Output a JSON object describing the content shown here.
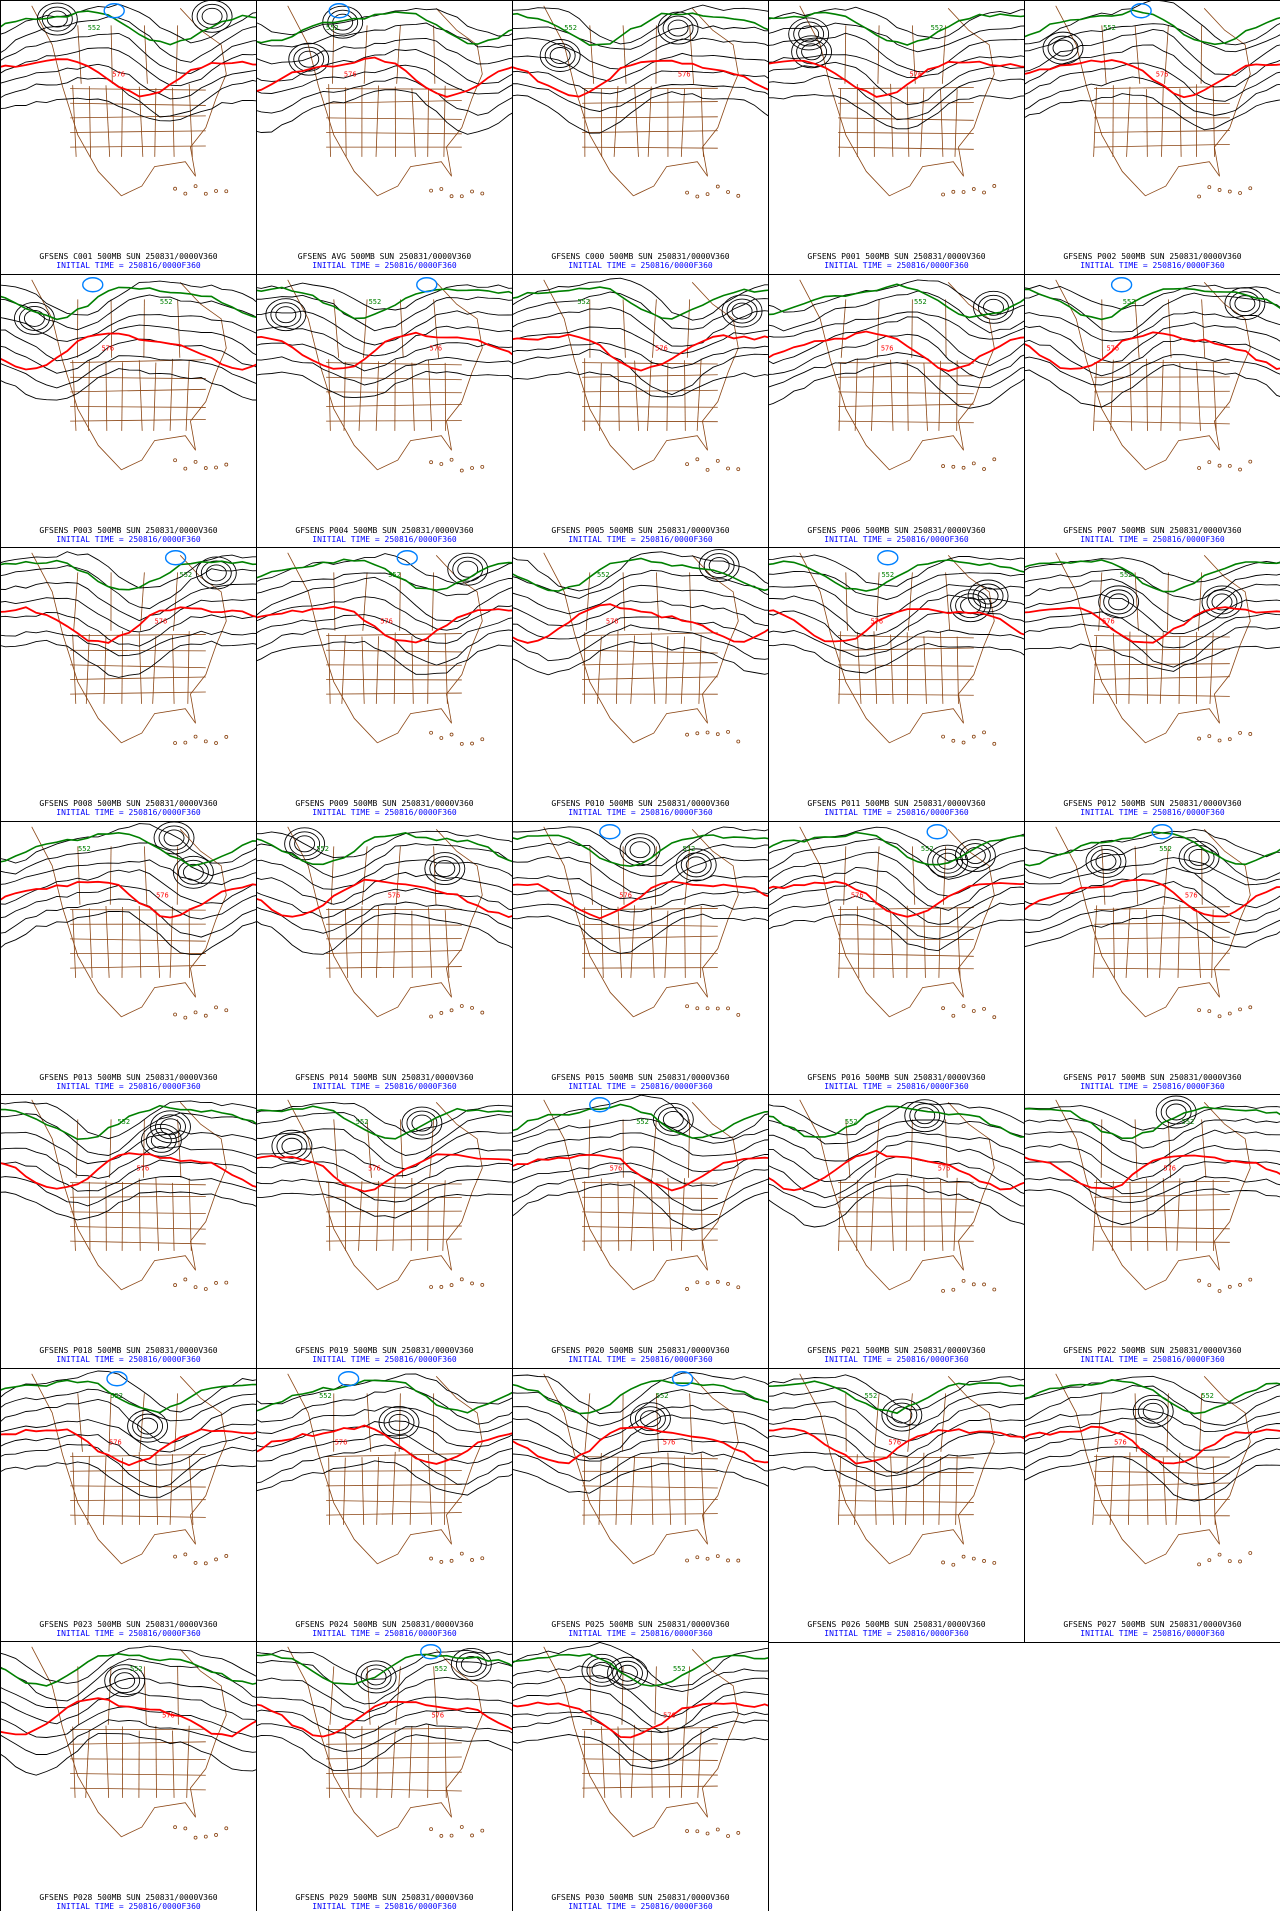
{
  "initial_time_label": "INITIAL TIME = 250816/0000F360",
  "colors": {
    "border": "#000000",
    "contour": "#000000",
    "contour_576": "#ff0000",
    "contour_552": "#008000",
    "contour_low": "#0080ff",
    "map_lines": "#8b4513",
    "caption_blue": "#0000ff"
  },
  "contour_labels": {
    "line_576": "576",
    "line_552": "552"
  },
  "panels": [
    {
      "title": "GFSENS C001 500MB SUN 250831/0000V360"
    },
    {
      "title": "GFSENS AVG 500MB SUN 250831/0000V360"
    },
    {
      "title": "GFSENS C000 500MB SUN 250831/0000V360"
    },
    {
      "title": "GFSENS P001 500MB SUN 250831/0000V360"
    },
    {
      "title": "GFSENS P002 500MB SUN 250831/0000V360"
    },
    {
      "title": "GFSENS P003 500MB SUN 250831/0000V360"
    },
    {
      "title": "GFSENS P004 500MB SUN 250831/0000V360"
    },
    {
      "title": "GFSENS P005 500MB SUN 250831/0000V360"
    },
    {
      "title": "GFSENS P006 500MB SUN 250831/0000V360"
    },
    {
      "title": "GFSENS P007 500MB SUN 250831/0000V360"
    },
    {
      "title": "GFSENS P008 500MB SUN 250831/0000V360"
    },
    {
      "title": "GFSENS P009 500MB SUN 250831/0000V360"
    },
    {
      "title": "GFSENS P010 500MB SUN 250831/0000V360"
    },
    {
      "title": "GFSENS P011 500MB SUN 250831/0000V360"
    },
    {
      "title": "GFSENS P012 500MB SUN 250831/0000V360"
    },
    {
      "title": "GFSENS P013 500MB SUN 250831/0000V360"
    },
    {
      "title": "GFSENS P014 500MB SUN 250831/0000V360"
    },
    {
      "title": "GFSENS P015 500MB SUN 250831/0000V360"
    },
    {
      "title": "GFSENS P016 500MB SUN 250831/0000V360"
    },
    {
      "title": "GFSENS P017 500MB SUN 250831/0000V360"
    },
    {
      "title": "GFSENS P018 500MB SUN 250831/0000V360"
    },
    {
      "title": "GFSENS P019 500MB SUN 250831/0000V360"
    },
    {
      "title": "GFSENS P020 500MB SUN 250831/0000V360"
    },
    {
      "title": "GFSENS P021 500MB SUN 250831/0000V360"
    },
    {
      "title": "GFSENS P022 500MB SUN 250831/0000V360"
    },
    {
      "title": "GFSENS P023 500MB SUN 250831/0000V360"
    },
    {
      "title": "GFSENS P024 500MB SUN 250831/0000V360"
    },
    {
      "title": "GFSENS P025 500MB SUN 250831/0000V360"
    },
    {
      "title": "GFSENS P026 500MB SUN 250831/0000V360"
    },
    {
      "title": "GFSENS P027 500MB SUN 250831/0000V360"
    },
    {
      "title": "GFSENS P028 500MB SUN 250831/0000V360"
    },
    {
      "title": "GFSENS P029 500MB SUN 250831/0000V360"
    },
    {
      "title": "GFSENS P030 500MB SUN 250831/0000V360"
    }
  ]
}
